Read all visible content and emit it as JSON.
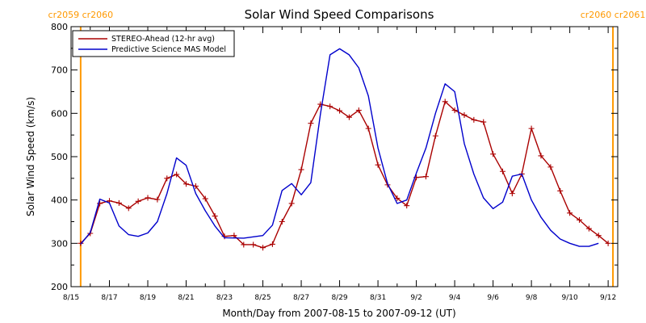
{
  "chart_data": {
    "type": "line",
    "title": "Solar Wind Speed Comparisons",
    "xlabel": "Month/Day from 2007-08-15 to 2007-09-12 (UT)",
    "ylabel": "Solar Wind Speed (km/s)",
    "xlim": [
      "2007-08-15",
      "2007-09-12T12:00"
    ],
    "ylim": [
      200,
      800
    ],
    "x_tick_values": [
      "2007-08-15",
      "2007-08-17",
      "2007-08-19",
      "2007-08-21",
      "2007-08-23",
      "2007-08-25",
      "2007-08-27",
      "2007-08-29",
      "2007-08-31",
      "2007-09-02",
      "2007-09-04",
      "2007-09-06",
      "2007-09-08",
      "2007-09-10",
      "2007-09-12"
    ],
    "x_tick_labels": [
      "8/15",
      "8/17",
      "8/19",
      "8/21",
      "8/23",
      "8/25",
      "8/27",
      "8/29",
      "8/31",
      "9/2",
      "9/4",
      "9/6",
      "9/8",
      "9/10",
      "9/12"
    ],
    "y_ticks": [
      200,
      300,
      400,
      500,
      600,
      700,
      800
    ],
    "legend": {
      "placement": "top-left"
    },
    "grid": false,
    "carrington_markers": [
      {
        "x": "2007-08-15T12:00",
        "left_label": "cr2059",
        "right_label": "cr2060"
      },
      {
        "x": "2007-09-12T06:00",
        "left_label": "cr2060",
        "right_label": "cr2061"
      }
    ],
    "series": [
      {
        "name": "STEREO-Ahead (12-hr avg)",
        "color": "#aa0000",
        "marker": "plus",
        "points": [
          [
            "2007-08-15T12:00",
            300
          ],
          [
            "2007-08-16T00:00",
            323
          ],
          [
            "2007-08-16T12:00",
            392
          ],
          [
            "2007-08-17T00:00",
            398
          ],
          [
            "2007-08-17T12:00",
            393
          ],
          [
            "2007-08-18T00:00",
            381
          ],
          [
            "2007-08-18T12:00",
            397
          ],
          [
            "2007-08-19T00:00",
            405
          ],
          [
            "2007-08-19T12:00",
            401
          ],
          [
            "2007-08-20T00:00",
            450
          ],
          [
            "2007-08-20T12:00",
            459
          ],
          [
            "2007-08-21T00:00",
            437
          ],
          [
            "2007-08-21T12:00",
            432
          ],
          [
            "2007-08-22T00:00",
            403
          ],
          [
            "2007-08-22T12:00",
            363
          ],
          [
            "2007-08-23T00:00",
            316
          ],
          [
            "2007-08-23T12:00",
            318
          ],
          [
            "2007-08-24T00:00",
            297
          ],
          [
            "2007-08-24T12:00",
            297
          ],
          [
            "2007-08-25T00:00",
            290
          ],
          [
            "2007-08-25T12:00",
            298
          ],
          [
            "2007-08-26T00:00",
            350
          ],
          [
            "2007-08-26T12:00",
            392
          ],
          [
            "2007-08-27T00:00",
            470
          ],
          [
            "2007-08-27T12:00",
            577
          ],
          [
            "2007-08-28T00:00",
            621
          ],
          [
            "2007-08-28T12:00",
            616
          ],
          [
            "2007-08-29T00:00",
            606
          ],
          [
            "2007-08-29T12:00",
            591
          ],
          [
            "2007-08-30T00:00",
            607
          ],
          [
            "2007-08-30T12:00",
            565
          ],
          [
            "2007-08-31T00:00",
            481
          ],
          [
            "2007-08-31T12:00",
            435
          ],
          [
            "2007-09-01T00:00",
            404
          ],
          [
            "2007-09-01T12:00",
            387
          ],
          [
            "2007-09-02T00:00",
            452
          ],
          [
            "2007-09-02T12:00",
            454
          ],
          [
            "2007-09-03T00:00",
            548
          ],
          [
            "2007-09-03T12:00",
            627
          ],
          [
            "2007-09-04T00:00",
            607
          ],
          [
            "2007-09-04T12:00",
            596
          ],
          [
            "2007-09-05T00:00",
            585
          ],
          [
            "2007-09-05T12:00",
            580
          ],
          [
            "2007-09-06T00:00",
            506
          ],
          [
            "2007-09-06T12:00",
            466
          ],
          [
            "2007-09-07T00:00",
            415
          ],
          [
            "2007-09-07T12:00",
            460
          ],
          [
            "2007-09-08T00:00",
            565
          ],
          [
            "2007-09-08T12:00",
            502
          ],
          [
            "2007-09-09T00:00",
            476
          ],
          [
            "2007-09-09T12:00",
            421
          ],
          [
            "2007-09-10T00:00",
            370
          ],
          [
            "2007-09-10T12:00",
            354
          ],
          [
            "2007-09-11T00:00",
            334
          ],
          [
            "2007-09-11T12:00",
            318
          ],
          [
            "2007-09-12T00:00",
            300
          ]
        ]
      },
      {
        "name": "Predictive Science MAS Model",
        "color": "#0000cc",
        "marker": "none",
        "points": [
          [
            "2007-08-15T12:00",
            298
          ],
          [
            "2007-08-16T00:00",
            325
          ],
          [
            "2007-08-16T12:00",
            402
          ],
          [
            "2007-08-17T00:00",
            393
          ],
          [
            "2007-08-17T12:00",
            340
          ],
          [
            "2007-08-18T00:00",
            320
          ],
          [
            "2007-08-18T12:00",
            316
          ],
          [
            "2007-08-19T00:00",
            324
          ],
          [
            "2007-08-19T12:00",
            350
          ],
          [
            "2007-08-20T00:00",
            415
          ],
          [
            "2007-08-20T12:00",
            497
          ],
          [
            "2007-08-21T00:00",
            480
          ],
          [
            "2007-08-21T12:00",
            415
          ],
          [
            "2007-08-22T00:00",
            375
          ],
          [
            "2007-08-22T12:00",
            340
          ],
          [
            "2007-08-23T00:00",
            313
          ],
          [
            "2007-08-24T00:00",
            312
          ],
          [
            "2007-08-25T00:00",
            318
          ],
          [
            "2007-08-25T12:00",
            342
          ],
          [
            "2007-08-26T00:00",
            422
          ],
          [
            "2007-08-26T12:00",
            438
          ],
          [
            "2007-08-27T00:00",
            412
          ],
          [
            "2007-08-27T12:00",
            440
          ],
          [
            "2007-08-28T00:00",
            598
          ],
          [
            "2007-08-28T12:00",
            735
          ],
          [
            "2007-08-29T00:00",
            749
          ],
          [
            "2007-08-29T12:00",
            735
          ],
          [
            "2007-08-30T00:00",
            705
          ],
          [
            "2007-08-30T12:00",
            640
          ],
          [
            "2007-08-31T00:00",
            520
          ],
          [
            "2007-08-31T12:00",
            438
          ],
          [
            "2007-09-01T00:00",
            392
          ],
          [
            "2007-09-01T12:00",
            400
          ],
          [
            "2007-09-02T00:00",
            462
          ],
          [
            "2007-09-02T12:00",
            520
          ],
          [
            "2007-09-03T00:00",
            600
          ],
          [
            "2007-09-03T12:00",
            668
          ],
          [
            "2007-09-04T00:00",
            650
          ],
          [
            "2007-09-04T12:00",
            530
          ],
          [
            "2007-09-05T00:00",
            460
          ],
          [
            "2007-09-05T12:00",
            405
          ],
          [
            "2007-09-06T00:00",
            380
          ],
          [
            "2007-09-06T12:00",
            395
          ],
          [
            "2007-09-07T00:00",
            455
          ],
          [
            "2007-09-07T12:00",
            460
          ],
          [
            "2007-09-08T00:00",
            400
          ],
          [
            "2007-09-08T12:00",
            360
          ],
          [
            "2007-09-09T00:00",
            330
          ],
          [
            "2007-09-09T12:00",
            310
          ],
          [
            "2007-09-10T00:00",
            300
          ],
          [
            "2007-09-10T12:00",
            293
          ],
          [
            "2007-09-11T00:00",
            293
          ],
          [
            "2007-09-11T12:00",
            300
          ]
        ]
      }
    ]
  }
}
